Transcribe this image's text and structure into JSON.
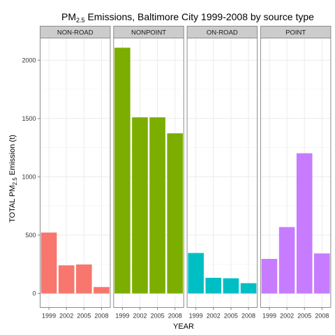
{
  "chart_data": {
    "type": "bar",
    "title": {
      "prefix": "PM",
      "sub": "2.5",
      "suffix": " Emissions, Baltimore City 1999-2008 by source type"
    },
    "xlabel": "YEAR",
    "ylabel": {
      "prefix": "TOTAL PM",
      "sub": "2.5",
      "suffix": " Emission (t)"
    },
    "categories": [
      "1999",
      "2002",
      "2005",
      "2008"
    ],
    "ylim": [
      -120,
      2190
    ],
    "yticks": [
      0,
      500,
      1000,
      1500,
      2000
    ],
    "grid": true,
    "legend": "none",
    "facets": [
      {
        "name": "NON-ROAD",
        "color": "#F8766D",
        "values": [
          522,
          241,
          248,
          55
        ]
      },
      {
        "name": "NONPOINT",
        "color": "#7CAE00",
        "values": [
          2107,
          1510,
          1510,
          1373
        ]
      },
      {
        "name": "ON-ROAD",
        "color": "#00BFC4",
        "values": [
          347,
          134,
          130,
          88
        ]
      },
      {
        "name": "POINT",
        "color": "#C77CFF",
        "values": [
          296,
          569,
          1202,
          343
        ]
      }
    ],
    "colors": {
      "panel_border": "#8c8c8c",
      "strip_fill": "#cccccc",
      "grid_major": "#ebebeb",
      "grid_minor": "#f5f5f5"
    }
  }
}
